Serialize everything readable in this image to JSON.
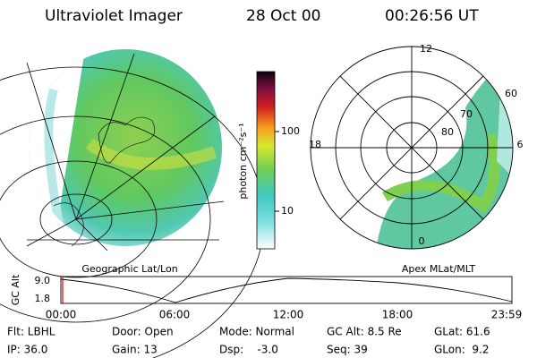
{
  "header": {
    "title": "Ultraviolet Imager",
    "date": "28 Oct 00",
    "time": "00:26:56 UT"
  },
  "colorbar": {
    "label": "photon cm⁻²s⁻¹",
    "ticks": [
      "100",
      "10"
    ]
  },
  "left_map": {
    "label": "Geographic Lat/Lon"
  },
  "right_map": {
    "label": "Apex MLat/MLT",
    "mlt_labels": [
      "12",
      "18",
      "6",
      "0"
    ],
    "lat_labels": [
      "60",
      "70",
      "80"
    ]
  },
  "altitude_plot": {
    "axis_label": "GC Alt",
    "yticks": [
      "9.0",
      "1.8"
    ],
    "xticks": [
      "00:00",
      "06:00",
      "12:00",
      "18:00",
      "23:59"
    ]
  },
  "status": {
    "rows": [
      [
        "Flt: LBHL",
        "Door: Open",
        "Mode: Normal",
        "GC Alt: 8.5 Re",
        "GLat: 61.6"
      ],
      [
        "IP: 36.0",
        "Gain: 13",
        "Dsp:    -3.0",
        "Seq: 39",
        "GLon:  9.2"
      ]
    ]
  }
}
